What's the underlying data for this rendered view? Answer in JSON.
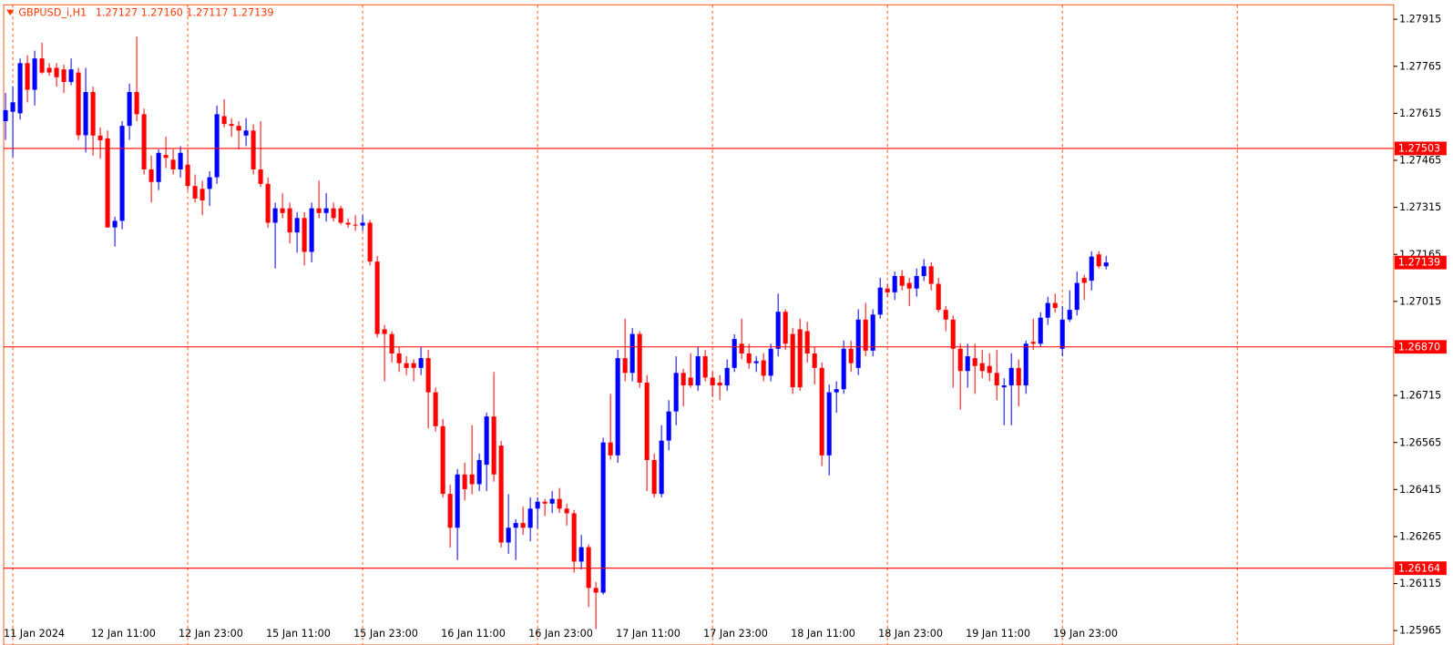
{
  "chart_data": {
    "type": "candlestick",
    "symbol": "GBPUSD_i,H1",
    "quote": "1.27127 1.27160 1.27117 1.27139",
    "bull_color": "#0000ff",
    "bear_color": "#ff0000",
    "grid_color": "#ff5a1e",
    "level_color": "#ff0000",
    "xlim": [
      -0.25,
      190.45
    ],
    "ylim": [
      1.25919,
      1.27961
    ],
    "yticks": [
      1.27915,
      1.27765,
      1.27615,
      1.27465,
      1.27315,
      1.27165,
      1.27015,
      1.26865,
      1.26715,
      1.26565,
      1.26415,
      1.26265,
      1.26115,
      1.25965
    ],
    "xticks": [
      {
        "value": 0,
        "label": "11 Jan 2024"
      },
      {
        "value": 12,
        "label": "12 Jan 11:00"
      },
      {
        "value": 24,
        "label": "12 Jan 23:00"
      },
      {
        "value": 36,
        "label": "15 Jan 11:00"
      },
      {
        "value": 48,
        "label": "15 Jan 23:00"
      },
      {
        "value": 60,
        "label": "16 Jan 11:00"
      },
      {
        "value": 72,
        "label": "16 Jan 23:00"
      },
      {
        "value": 84,
        "label": "17 Jan 11:00"
      },
      {
        "value": 96,
        "label": "17 Jan 23:00"
      },
      {
        "value": 108,
        "label": "18 Jan 11:00"
      },
      {
        "value": 120,
        "label": "18 Jan 23:00"
      },
      {
        "value": 132,
        "label": "19 Jan 11:00"
      },
      {
        "value": 144,
        "label": "19 Jan 23:00"
      }
    ],
    "x_grid": [
      1,
      25,
      49,
      73,
      97,
      121,
      145,
      169
    ],
    "levels": [
      1.27503,
      {
        "value": 1.2687,
        "label": "1.26870"
      },
      1.26164
    ],
    "current_price": 1.27139,
    "candles": [
      [
        1.2759,
        1.2768,
        1.2753,
        1.27625
      ],
      [
        1.2762,
        1.277,
        1.27475,
        1.2765
      ],
      [
        1.27615,
        1.2779,
        1.27595,
        1.27775
      ],
      [
        1.27775,
        1.278,
        1.2765,
        1.2769
      ],
      [
        1.2769,
        1.27815,
        1.2764,
        1.2779
      ],
      [
        1.2779,
        1.2784,
        1.2774,
        1.27745
      ],
      [
        1.2776,
        1.27775,
        1.27735,
        1.27745
      ],
      [
        1.2776,
        1.27775,
        1.277,
        1.2773
      ],
      [
        1.27755,
        1.2777,
        1.2768,
        1.27715
      ],
      [
        1.27715,
        1.2779,
        1.27705,
        1.27755
      ],
      [
        1.27745,
        1.2776,
        1.2753,
        1.27545
      ],
      [
        1.27545,
        1.2776,
        1.2749,
        1.27683
      ],
      [
        1.27683,
        1.277,
        1.2748,
        1.27544
      ],
      [
        1.27544,
        1.2757,
        1.2747,
        1.27529
      ],
      [
        1.27535,
        1.2756,
        1.2725,
        1.27251
      ],
      [
        1.27251,
        1.27285,
        1.2719,
        1.27272
      ],
      [
        1.27272,
        1.2759,
        1.27245,
        1.27575
      ],
      [
        1.27575,
        1.2771,
        1.2753,
        1.27683
      ],
      [
        1.27683,
        1.2786,
        1.2759,
        1.27612
      ],
      [
        1.27612,
        1.2763,
        1.2742,
        1.27436
      ],
      [
        1.27436,
        1.2748,
        1.2733,
        1.27396
      ],
      [
        1.27396,
        1.275,
        1.2737,
        1.27489
      ],
      [
        1.27482,
        1.2754,
        1.2744,
        1.27473
      ],
      [
        1.27467,
        1.275,
        1.2742,
        1.27436
      ],
      [
        1.27436,
        1.2751,
        1.2741,
        1.27489
      ],
      [
        1.27451,
        1.275,
        1.2737,
        1.27383
      ],
      [
        1.27383,
        1.2742,
        1.2733,
        1.27343
      ],
      [
        1.27374,
        1.274,
        1.2729,
        1.27337
      ],
      [
        1.27374,
        1.2743,
        1.2732,
        1.27411
      ],
      [
        1.27411,
        1.2764,
        1.2739,
        1.27612
      ],
      [
        1.27606,
        1.2766,
        1.2757,
        1.27581
      ],
      [
        1.27581,
        1.276,
        1.2754,
        1.27575
      ],
      [
        1.27575,
        1.2759,
        1.275,
        1.2756
      ],
      [
        1.27544,
        1.276,
        1.2751,
        1.2756
      ],
      [
        1.2756,
        1.2758,
        1.2742,
        1.27436
      ],
      [
        1.27436,
        1.2759,
        1.2738,
        1.2739
      ],
      [
        1.2739,
        1.2741,
        1.2725,
        1.27266
      ],
      [
        1.27266,
        1.2733,
        1.2712,
        1.27312
      ],
      [
        1.27312,
        1.2736,
        1.2728,
        1.27297
      ],
      [
        1.27312,
        1.2733,
        1.272,
        1.27235
      ],
      [
        1.27235,
        1.273,
        1.2717,
        1.27281
      ],
      [
        1.27281,
        1.273,
        1.2713,
        1.27173
      ],
      [
        1.27173,
        1.2733,
        1.2714,
        1.27312
      ],
      [
        1.27312,
        1.274,
        1.2728,
        1.27297
      ],
      [
        1.27297,
        1.2736,
        1.2727,
        1.27312
      ],
      [
        1.27312,
        1.2733,
        1.2727,
        1.27281
      ],
      [
        1.27312,
        1.2732,
        1.2726,
        1.27266
      ],
      [
        1.27266,
        1.2728,
        1.2725,
        1.2726
      ],
      [
        1.2726,
        1.2729,
        1.2724,
        1.27257
      ],
      [
        1.27257,
        1.2729,
        1.2724,
        1.27266
      ],
      [
        1.27266,
        1.27275,
        1.2713,
        1.27142
      ],
      [
        1.27142,
        1.2716,
        1.269,
        1.26911
      ],
      [
        1.26926,
        1.2694,
        1.2676,
        1.26911
      ],
      [
        1.26911,
        1.2692,
        1.2682,
        1.26849
      ],
      [
        1.26849,
        1.2687,
        1.2679,
        1.26818
      ],
      [
        1.26818,
        1.2684,
        1.2678,
        1.26803
      ],
      [
        1.26818,
        1.2683,
        1.2676,
        1.26803
      ],
      [
        1.26803,
        1.2687,
        1.2678,
        1.26834
      ],
      [
        1.26834,
        1.2686,
        1.2661,
        1.26725
      ],
      [
        1.26725,
        1.2674,
        1.266,
        1.26617
      ],
      [
        1.26617,
        1.2664,
        1.2639,
        1.26401
      ],
      [
        1.26401,
        1.2643,
        1.2623,
        1.26293
      ],
      [
        1.26293,
        1.2648,
        1.2619,
        1.26463
      ],
      [
        1.26463,
        1.265,
        1.2638,
        1.26416
      ],
      [
        1.26463,
        1.2662,
        1.264,
        1.26432
      ],
      [
        1.26432,
        1.2653,
        1.2641,
        1.26509
      ],
      [
        1.26494,
        1.2666,
        1.2641,
        1.26648
      ],
      [
        1.26648,
        1.2679,
        1.2644,
        1.26463
      ],
      [
        1.26555,
        1.2657,
        1.2623,
        1.26246
      ],
      [
        1.26246,
        1.264,
        1.2621,
        1.26293
      ],
      [
        1.26293,
        1.2632,
        1.2619,
        1.26308
      ],
      [
        1.26308,
        1.2636,
        1.2627,
        1.26293
      ],
      [
        1.26293,
        1.2639,
        1.2625,
        1.26354
      ],
      [
        1.26354,
        1.2639,
        1.2629,
        1.26376
      ],
      [
        1.26376,
        1.26385,
        1.2633,
        1.2637
      ],
      [
        1.2637,
        1.2641,
        1.2634,
        1.26385
      ],
      [
        1.26385,
        1.2642,
        1.2634,
        1.26354
      ],
      [
        1.26354,
        1.2637,
        1.263,
        1.26339
      ],
      [
        1.26339,
        1.2635,
        1.2615,
        1.26185
      ],
      [
        1.26185,
        1.2627,
        1.2616,
        1.26231
      ],
      [
        1.26231,
        1.2624,
        1.2604,
        1.26101
      ],
      [
        1.26101,
        1.2612,
        1.2597,
        1.26086
      ],
      [
        1.26086,
        1.2658,
        1.2608,
        1.26565
      ],
      [
        1.26565,
        1.2672,
        1.2651,
        1.26524
      ],
      [
        1.26524,
        1.2686,
        1.265,
        1.26834
      ],
      [
        1.26834,
        1.2696,
        1.2676,
        1.26787
      ],
      [
        1.26787,
        1.2693,
        1.2676,
        1.26911
      ],
      [
        1.26911,
        1.2692,
        1.2674,
        1.26756
      ],
      [
        1.26756,
        1.2678,
        1.2641,
        1.26509
      ],
      [
        1.26509,
        1.2653,
        1.2639,
        1.26401
      ],
      [
        1.26401,
        1.2662,
        1.2639,
        1.26571
      ],
      [
        1.26571,
        1.267,
        1.2654,
        1.26664
      ],
      [
        1.26664,
        1.2684,
        1.2662,
        1.26787
      ],
      [
        1.26787,
        1.268,
        1.2668,
        1.26747
      ],
      [
        1.26772,
        1.2685,
        1.2674,
        1.26747
      ],
      [
        1.26747,
        1.2687,
        1.2673,
        1.2684
      ],
      [
        1.2684,
        1.2686,
        1.2676,
        1.26772
      ],
      [
        1.26772,
        1.2679,
        1.2671,
        1.26747
      ],
      [
        1.26756,
        1.2678,
        1.267,
        1.26747
      ],
      [
        1.26747,
        1.2683,
        1.2673,
        1.26803
      ],
      [
        1.26803,
        1.2691,
        1.2679,
        1.26895
      ],
      [
        1.2688,
        1.2696,
        1.2683,
        1.26849
      ],
      [
        1.26849,
        1.2688,
        1.268,
        1.26818
      ],
      [
        1.26818,
        1.2684,
        1.2679,
        1.26824
      ],
      [
        1.26827,
        1.2685,
        1.2676,
        1.26778
      ],
      [
        1.26778,
        1.2688,
        1.2676,
        1.26864
      ],
      [
        1.26864,
        1.2704,
        1.2684,
        1.26982
      ],
      [
        1.26982,
        1.2699,
        1.2686,
        1.2688
      ],
      [
        1.26911,
        1.2693,
        1.2672,
        1.26741
      ],
      [
        1.26926,
        1.2696,
        1.2673,
        1.26741
      ],
      [
        1.2692,
        1.2695,
        1.2682,
        1.26849
      ],
      [
        1.26849,
        1.2687,
        1.2675,
        1.26803
      ],
      [
        1.26803,
        1.2682,
        1.2649,
        1.26524
      ],
      [
        1.26524,
        1.2675,
        1.2646,
        1.26725
      ],
      [
        1.26725,
        1.2676,
        1.2666,
        1.26735
      ],
      [
        1.26735,
        1.2689,
        1.2672,
        1.26864
      ],
      [
        1.26864,
        1.2689,
        1.2679,
        1.26818
      ],
      [
        1.26803,
        1.2699,
        1.2678,
        1.26957
      ],
      [
        1.26957,
        1.2701,
        1.2684,
        1.26858
      ],
      [
        1.26858,
        1.2699,
        1.2684,
        1.26973
      ],
      [
        1.26973,
        1.2709,
        1.2696,
        1.27059
      ],
      [
        1.27056,
        1.2707,
        1.2703,
        1.27044
      ],
      [
        1.27044,
        1.2711,
        1.2702,
        1.27096
      ],
      [
        1.27096,
        1.27115,
        1.2705,
        1.27065
      ],
      [
        1.27074,
        1.2709,
        1.27,
        1.27056
      ],
      [
        1.27056,
        1.2712,
        1.2703,
        1.27096
      ],
      [
        1.27096,
        1.2715,
        1.2708,
        1.27127
      ],
      [
        1.27127,
        1.2714,
        1.2705,
        1.27071
      ],
      [
        1.27071,
        1.2709,
        1.2698,
        1.26988
      ],
      [
        1.26988,
        1.27,
        1.2692,
        1.26957
      ],
      [
        1.26957,
        1.2697,
        1.2674,
        1.26864
      ],
      [
        1.26864,
        1.2688,
        1.2667,
        1.26793
      ],
      [
        1.26793,
        1.2688,
        1.2674,
        1.2684
      ],
      [
        1.26834,
        1.2688,
        1.2672,
        1.26809
      ],
      [
        1.26818,
        1.2686,
        1.2677,
        1.26793
      ],
      [
        1.26809,
        1.2685,
        1.2676,
        1.26787
      ],
      [
        1.26787,
        1.2686,
        1.267,
        1.26747
      ],
      [
        1.26741,
        1.2677,
        1.2662,
        1.26747
      ],
      [
        1.26747,
        1.2685,
        1.2662,
        1.26803
      ],
      [
        1.26803,
        1.2683,
        1.2668,
        1.26747
      ],
      [
        1.26747,
        1.2689,
        1.2672,
        1.2688
      ],
      [
        1.26886,
        1.2696,
        1.2686,
        1.2688
      ],
      [
        1.2688,
        1.2698,
        1.2687,
        1.26963
      ],
      [
        1.26963,
        1.2703,
        1.2694,
        1.2701
      ],
      [
        1.2701,
        1.2704,
        1.2698,
        1.26994
      ],
      [
        1.26864,
        1.27,
        1.2684,
        1.26957
      ],
      [
        1.26957,
        1.2705,
        1.2695,
        1.26988
      ],
      [
        1.26988,
        1.2711,
        1.2697,
        1.27074
      ],
      [
        1.2709,
        1.271,
        1.2702,
        1.27074
      ],
      [
        1.27081,
        1.27175,
        1.2705,
        1.27158
      ],
      [
        1.27165,
        1.27175,
        1.2712,
        1.27127
      ],
      [
        1.27127,
        1.2716,
        1.27117,
        1.27139
      ]
    ]
  }
}
